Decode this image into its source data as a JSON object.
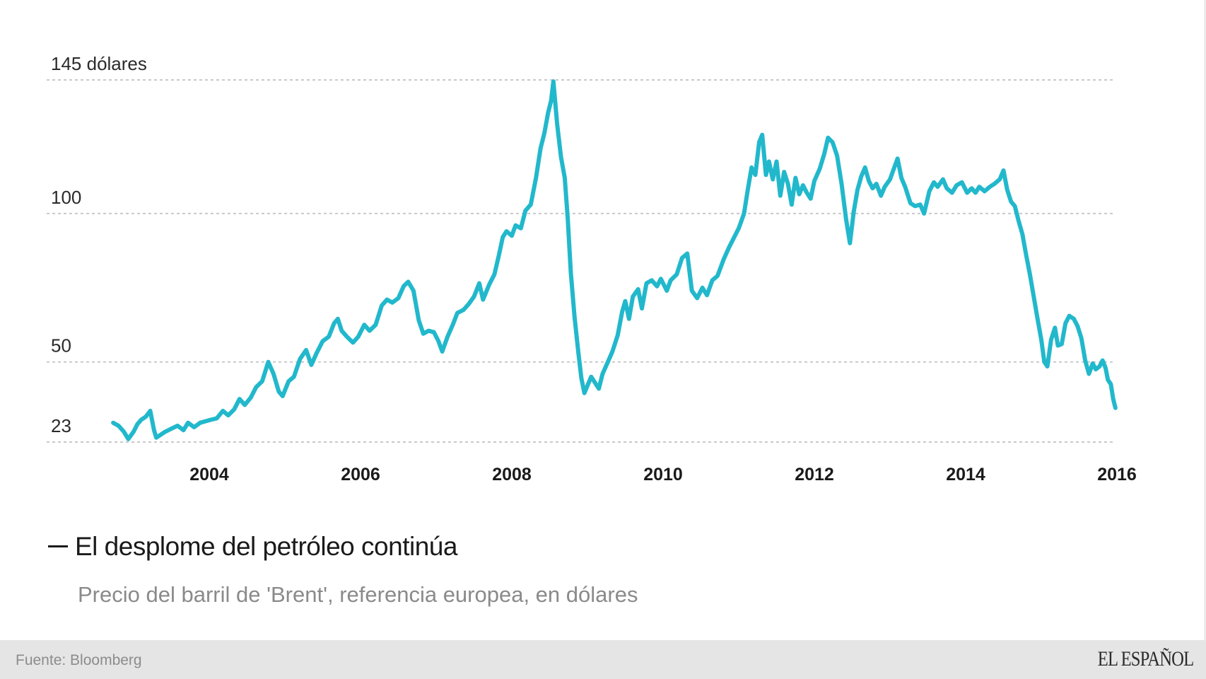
{
  "chart_data": {
    "type": "line",
    "title": "El desplome del petróleo continúa",
    "subtitle": "Precio del barril de 'Brent', referencia europea, en dólares",
    "xlabel": "",
    "ylabel": "dólares",
    "xlim": [
      2002.5,
      2016.0
    ],
    "ylim": [
      23,
      145
    ],
    "grid": true,
    "y_ticks": [
      {
        "value": 145,
        "label": "145 dólares"
      },
      {
        "value": 100,
        "label": "100"
      },
      {
        "value": 50,
        "label": "50"
      },
      {
        "value": 23,
        "label": "23"
      }
    ],
    "x_ticks": [
      {
        "value": 2004,
        "label": "2004"
      },
      {
        "value": 2006,
        "label": "2006"
      },
      {
        "value": 2008,
        "label": "2008"
      },
      {
        "value": 2010,
        "label": "2010"
      },
      {
        "value": 2012,
        "label": "2012"
      },
      {
        "value": 2014,
        "label": "2014"
      },
      {
        "value": 2016,
        "label": "2016"
      }
    ],
    "series": [
      {
        "name": "Brent",
        "color": "#22b8cc",
        "points": [
          [
            2002.73,
            29.5
          ],
          [
            2002.8,
            28.5
          ],
          [
            2002.87,
            26.5
          ],
          [
            2002.93,
            24.0
          ],
          [
            2003.0,
            26.5
          ],
          [
            2003.05,
            29.0
          ],
          [
            2003.1,
            30.5
          ],
          [
            2003.16,
            31.5
          ],
          [
            2003.22,
            33.5
          ],
          [
            2003.27,
            27.0
          ],
          [
            2003.3,
            24.5
          ],
          [
            2003.36,
            25.5
          ],
          [
            2003.42,
            26.5
          ],
          [
            2003.5,
            27.5
          ],
          [
            2003.58,
            28.5
          ],
          [
            2003.66,
            27.0
          ],
          [
            2003.72,
            29.5
          ],
          [
            2003.8,
            28.0
          ],
          [
            2003.88,
            29.5
          ],
          [
            2003.95,
            30.0
          ],
          [
            2004.02,
            30.5
          ],
          [
            2004.1,
            31.0
          ],
          [
            2004.18,
            33.5
          ],
          [
            2004.25,
            32.0
          ],
          [
            2004.33,
            34.0
          ],
          [
            2004.4,
            37.5
          ],
          [
            2004.47,
            35.5
          ],
          [
            2004.55,
            38.0
          ],
          [
            2004.62,
            41.5
          ],
          [
            2004.7,
            43.5
          ],
          [
            2004.78,
            50.0
          ],
          [
            2004.85,
            46.0
          ],
          [
            2004.92,
            40.0
          ],
          [
            2004.97,
            38.5
          ],
          [
            2005.05,
            43.5
          ],
          [
            2005.12,
            45.0
          ],
          [
            2005.2,
            51.0
          ],
          [
            2005.28,
            54.0
          ],
          [
            2005.35,
            49.0
          ],
          [
            2005.42,
            53.0
          ],
          [
            2005.5,
            57.0
          ],
          [
            2005.58,
            58.5
          ],
          [
            2005.65,
            63.0
          ],
          [
            2005.7,
            64.5
          ],
          [
            2005.75,
            60.5
          ],
          [
            2005.82,
            58.5
          ],
          [
            2005.9,
            56.5
          ],
          [
            2005.97,
            58.5
          ],
          [
            2006.05,
            62.5
          ],
          [
            2006.12,
            60.5
          ],
          [
            2006.2,
            62.5
          ],
          [
            2006.28,
            69.0
          ],
          [
            2006.35,
            71.0
          ],
          [
            2006.42,
            70.0
          ],
          [
            2006.5,
            71.5
          ],
          [
            2006.57,
            75.5
          ],
          [
            2006.63,
            77.0
          ],
          [
            2006.7,
            74.0
          ],
          [
            2006.77,
            64.0
          ],
          [
            2006.83,
            59.5
          ],
          [
            2006.9,
            60.5
          ],
          [
            2006.97,
            60.0
          ],
          [
            2007.03,
            57.0
          ],
          [
            2007.08,
            53.5
          ],
          [
            2007.15,
            58.5
          ],
          [
            2007.22,
            62.5
          ],
          [
            2007.28,
            66.5
          ],
          [
            2007.36,
            67.5
          ],
          [
            2007.43,
            69.5
          ],
          [
            2007.5,
            72.0
          ],
          [
            2007.57,
            76.5
          ],
          [
            2007.62,
            71.0
          ],
          [
            2007.7,
            76.0
          ],
          [
            2007.77,
            79.5
          ],
          [
            2007.83,
            86.0
          ],
          [
            2007.88,
            92.0
          ],
          [
            2007.93,
            94.0
          ],
          [
            2008.0,
            92.5
          ],
          [
            2008.05,
            96.0
          ],
          [
            2008.12,
            95.0
          ],
          [
            2008.18,
            101.0
          ],
          [
            2008.25,
            103.0
          ],
          [
            2008.32,
            112.0
          ],
          [
            2008.38,
            122.0
          ],
          [
            2008.43,
            127.0
          ],
          [
            2008.48,
            134.0
          ],
          [
            2008.52,
            138.0
          ],
          [
            2008.55,
            144.5
          ],
          [
            2008.6,
            130.0
          ],
          [
            2008.65,
            119.0
          ],
          [
            2008.7,
            112.0
          ],
          [
            2008.74,
            98.0
          ],
          [
            2008.78,
            80.0
          ],
          [
            2008.83,
            65.0
          ],
          [
            2008.88,
            53.0
          ],
          [
            2008.92,
            44.5
          ],
          [
            2008.96,
            39.5
          ],
          [
            2009.0,
            42.0
          ],
          [
            2009.05,
            45.0
          ],
          [
            2009.1,
            43.0
          ],
          [
            2009.15,
            41.0
          ],
          [
            2009.2,
            46.0
          ],
          [
            2009.27,
            50.0
          ],
          [
            2009.33,
            53.5
          ],
          [
            2009.4,
            59.0
          ],
          [
            2009.46,
            67.0
          ],
          [
            2009.5,
            70.5
          ],
          [
            2009.55,
            64.5
          ],
          [
            2009.6,
            72.0
          ],
          [
            2009.67,
            74.5
          ],
          [
            2009.72,
            68.0
          ],
          [
            2009.78,
            76.5
          ],
          [
            2009.85,
            77.5
          ],
          [
            2009.92,
            75.5
          ],
          [
            2009.97,
            78.0
          ],
          [
            2010.05,
            74.0
          ],
          [
            2010.1,
            77.5
          ],
          [
            2010.18,
            79.5
          ],
          [
            2010.25,
            85.0
          ],
          [
            2010.32,
            86.5
          ],
          [
            2010.38,
            74.0
          ],
          [
            2010.45,
            71.5
          ],
          [
            2010.52,
            75.0
          ],
          [
            2010.58,
            72.5
          ],
          [
            2010.65,
            77.5
          ],
          [
            2010.72,
            79.0
          ],
          [
            2010.8,
            84.5
          ],
          [
            2010.87,
            88.5
          ],
          [
            2010.93,
            91.5
          ],
          [
            2011.0,
            95.0
          ],
          [
            2011.07,
            100.0
          ],
          [
            2011.12,
            108.0
          ],
          [
            2011.17,
            115.5
          ],
          [
            2011.22,
            113.0
          ],
          [
            2011.27,
            124.0
          ],
          [
            2011.31,
            126.5
          ],
          [
            2011.36,
            113.0
          ],
          [
            2011.4,
            117.5
          ],
          [
            2011.45,
            111.5
          ],
          [
            2011.5,
            117.5
          ],
          [
            2011.55,
            106.0
          ],
          [
            2011.6,
            114.0
          ],
          [
            2011.65,
            110.0
          ],
          [
            2011.7,
            103.0
          ],
          [
            2011.75,
            112.0
          ],
          [
            2011.8,
            106.5
          ],
          [
            2011.85,
            109.5
          ],
          [
            2011.9,
            107.0
          ],
          [
            2011.95,
            105.0
          ],
          [
            2012.0,
            111.0
          ],
          [
            2012.07,
            115.0
          ],
          [
            2012.13,
            120.0
          ],
          [
            2012.18,
            125.5
          ],
          [
            2012.24,
            124.0
          ],
          [
            2012.3,
            119.5
          ],
          [
            2012.36,
            110.0
          ],
          [
            2012.42,
            98.0
          ],
          [
            2012.47,
            90.0
          ],
          [
            2012.52,
            100.5
          ],
          [
            2012.57,
            108.0
          ],
          [
            2012.62,
            112.5
          ],
          [
            2012.67,
            115.5
          ],
          [
            2012.72,
            111.0
          ],
          [
            2012.77,
            108.5
          ],
          [
            2012.82,
            110.0
          ],
          [
            2012.88,
            106.0
          ],
          [
            2012.93,
            109.0
          ],
          [
            2013.0,
            111.5
          ],
          [
            2013.05,
            115.0
          ],
          [
            2013.1,
            118.5
          ],
          [
            2013.15,
            112.0
          ],
          [
            2013.2,
            109.0
          ],
          [
            2013.27,
            103.5
          ],
          [
            2013.33,
            102.5
          ],
          [
            2013.4,
            103.0
          ],
          [
            2013.45,
            100.0
          ],
          [
            2013.52,
            107.5
          ],
          [
            2013.58,
            110.5
          ],
          [
            2013.63,
            109.0
          ],
          [
            2013.7,
            111.5
          ],
          [
            2013.75,
            108.5
          ],
          [
            2013.82,
            107.0
          ],
          [
            2013.88,
            109.5
          ],
          [
            2013.95,
            110.5
          ],
          [
            2014.02,
            107.0
          ],
          [
            2014.08,
            108.5
          ],
          [
            2014.13,
            107.0
          ],
          [
            2014.18,
            109.0
          ],
          [
            2014.25,
            107.5
          ],
          [
            2014.32,
            109.0
          ],
          [
            2014.38,
            110.0
          ],
          [
            2014.45,
            111.5
          ],
          [
            2014.5,
            114.5
          ],
          [
            2014.55,
            108.0
          ],
          [
            2014.6,
            104.0
          ],
          [
            2014.65,
            102.5
          ],
          [
            2014.7,
            97.5
          ],
          [
            2014.75,
            93.0
          ],
          [
            2014.8,
            86.0
          ],
          [
            2014.85,
            79.5
          ],
          [
            2014.9,
            72.0
          ],
          [
            2014.95,
            64.5
          ],
          [
            2015.0,
            57.5
          ],
          [
            2015.04,
            50.0
          ],
          [
            2015.08,
            48.5
          ],
          [
            2015.13,
            57.5
          ],
          [
            2015.18,
            61.5
          ],
          [
            2015.22,
            55.5
          ],
          [
            2015.27,
            56.0
          ],
          [
            2015.32,
            63.0
          ],
          [
            2015.37,
            65.5
          ],
          [
            2015.43,
            64.5
          ],
          [
            2015.48,
            62.0
          ],
          [
            2015.53,
            58.0
          ],
          [
            2015.58,
            50.5
          ],
          [
            2015.63,
            46.0
          ],
          [
            2015.68,
            49.5
          ],
          [
            2015.72,
            47.5
          ],
          [
            2015.77,
            48.5
          ],
          [
            2015.81,
            50.5
          ],
          [
            2015.85,
            48.0
          ],
          [
            2015.88,
            44.0
          ],
          [
            2015.92,
            42.5
          ],
          [
            2015.95,
            37.5
          ],
          [
            2015.98,
            34.5
          ]
        ]
      }
    ]
  },
  "footer": {
    "source": "Fuente: Bloomberg",
    "brand": "EL ESPAÑOL"
  }
}
